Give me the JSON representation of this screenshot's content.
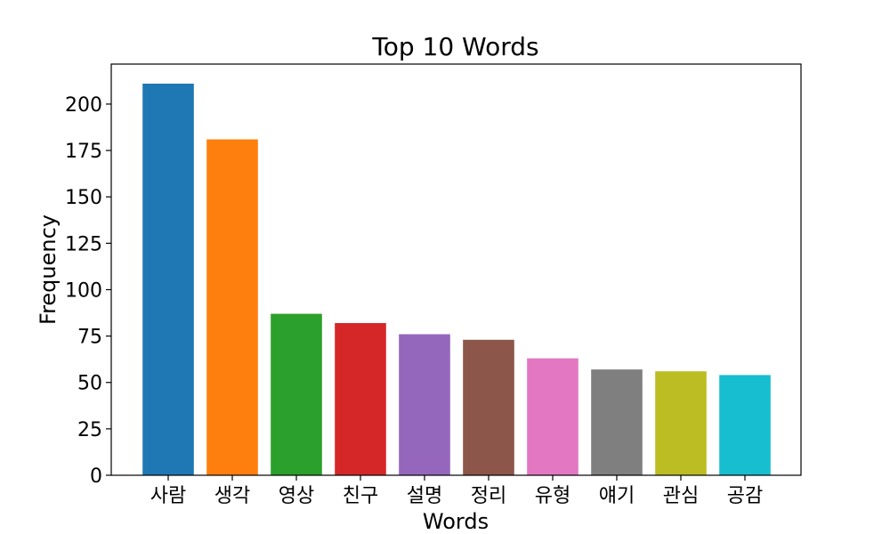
{
  "chart_data": {
    "type": "bar",
    "title": "Top 10 Words",
    "xlabel": "Words",
    "ylabel": "Frequency",
    "categories": [
      "사람",
      "생각",
      "영상",
      "친구",
      "설명",
      "정리",
      "유형",
      "얘기",
      "관심",
      "공감"
    ],
    "values": [
      211,
      181,
      87,
      82,
      76,
      73,
      63,
      57,
      56,
      54
    ],
    "colors": [
      "#1f77b4",
      "#ff7f0e",
      "#2ca02c",
      "#d62728",
      "#9467bd",
      "#8c564b",
      "#e377c2",
      "#7f7f7f",
      "#bcbd22",
      "#17becf"
    ],
    "ylim": [
      0,
      221.55
    ],
    "yticks": [
      0,
      25,
      50,
      75,
      100,
      125,
      150,
      175,
      200
    ],
    "grid": false,
    "legend": "none"
  }
}
